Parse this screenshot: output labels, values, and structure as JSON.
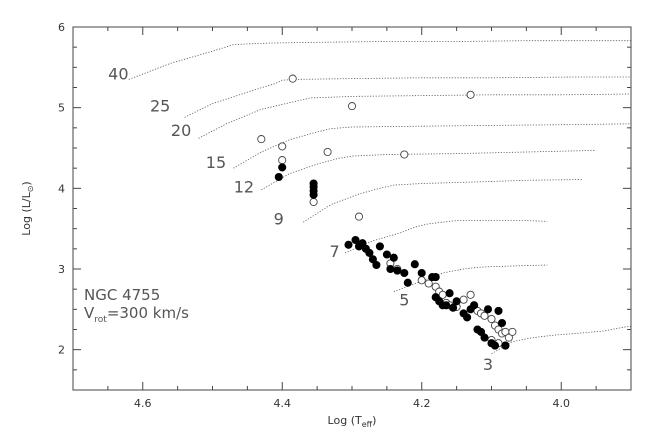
{
  "chart_data": {
    "type": "scatter",
    "xlabel": "Log (T",
    "xlabel_sub": "eff",
    "xlabel_close": ")",
    "ylabel": "Log (L/L",
    "ylabel_sub": "⊙",
    "ylabel_close": ")",
    "xlim": [
      4.7,
      3.9
    ],
    "ylim": [
      1.5,
      6.0
    ],
    "x_ticks": [
      4.6,
      4.4,
      4.2,
      4.0
    ],
    "x_tick_labels": [
      "4.6",
      "4.4",
      "4.2",
      "4.0"
    ],
    "y_ticks": [
      2,
      3,
      4,
      5,
      6
    ],
    "y_tick_labels": [
      "2",
      "3",
      "4",
      "5",
      "6"
    ],
    "annotation_line1": "NGC 4755",
    "annotation_v": "V",
    "annotation_sub": "rot",
    "annotation_rest": "=300 km/s",
    "tracks": [
      {
        "mass_label": "40",
        "label_x": 4.635,
        "label_y": 5.35,
        "points": [
          [
            4.62,
            5.35
          ],
          [
            4.56,
            5.55
          ],
          [
            4.5,
            5.7
          ],
          [
            4.47,
            5.78
          ],
          [
            4.45,
            5.79
          ],
          [
            4.42,
            5.8
          ],
          [
            4.35,
            5.81
          ],
          [
            4.25,
            5.82
          ],
          [
            4.15,
            5.82
          ],
          [
            4.05,
            5.83
          ],
          [
            3.9,
            5.83
          ]
        ]
      },
      {
        "mass_label": "25",
        "label_x": 4.575,
        "label_y": 4.95,
        "points": [
          [
            4.54,
            4.88
          ],
          [
            4.5,
            5.05
          ],
          [
            4.44,
            5.22
          ],
          [
            4.41,
            5.3
          ],
          [
            4.4,
            5.34
          ],
          [
            4.38,
            5.35
          ],
          [
            4.3,
            5.36
          ],
          [
            4.2,
            5.37
          ],
          [
            4.1,
            5.37
          ],
          [
            3.98,
            5.38
          ],
          [
            3.9,
            5.38
          ]
        ]
      },
      {
        "mass_label": "20",
        "label_x": 4.545,
        "label_y": 4.65,
        "points": [
          [
            4.52,
            4.62
          ],
          [
            4.48,
            4.8
          ],
          [
            4.43,
            4.98
          ],
          [
            4.38,
            5.08
          ],
          [
            4.36,
            5.12
          ],
          [
            4.3,
            5.14
          ],
          [
            4.2,
            5.15
          ],
          [
            4.1,
            5.16
          ],
          [
            4.0,
            5.16
          ],
          [
            3.9,
            5.17
          ]
        ]
      },
      {
        "mass_label": "15",
        "label_x": 4.495,
        "label_y": 4.25,
        "points": [
          [
            4.47,
            4.25
          ],
          [
            4.43,
            4.45
          ],
          [
            4.39,
            4.6
          ],
          [
            4.35,
            4.7
          ],
          [
            4.33,
            4.74
          ],
          [
            4.3,
            4.76
          ],
          [
            4.2,
            4.77
          ],
          [
            4.1,
            4.78
          ],
          [
            3.98,
            4.79
          ],
          [
            3.9,
            4.8
          ]
        ]
      },
      {
        "mass_label": "12",
        "label_x": 4.455,
        "label_y": 3.95,
        "points": [
          [
            4.43,
            3.98
          ],
          [
            4.39,
            4.18
          ],
          [
            4.35,
            4.3
          ],
          [
            4.32,
            4.37
          ],
          [
            4.3,
            4.4
          ],
          [
            4.25,
            4.42
          ],
          [
            4.15,
            4.43
          ],
          [
            4.05,
            4.45
          ],
          [
            3.95,
            4.47
          ]
        ]
      },
      {
        "mass_label": "9",
        "label_x": 4.405,
        "label_y": 3.55,
        "points": [
          [
            4.37,
            3.58
          ],
          [
            4.33,
            3.8
          ],
          [
            4.29,
            3.93
          ],
          [
            4.26,
            4.0
          ],
          [
            4.24,
            4.04
          ],
          [
            4.2,
            4.06
          ],
          [
            4.12,
            4.08
          ],
          [
            4.05,
            4.1
          ],
          [
            3.97,
            4.11
          ]
        ]
      },
      {
        "mass_label": "7",
        "label_x": 4.325,
        "label_y": 3.15,
        "points": [
          [
            4.31,
            3.2
          ],
          [
            4.27,
            3.35
          ],
          [
            4.23,
            3.45
          ],
          [
            4.21,
            3.52
          ],
          [
            4.19,
            3.56
          ],
          [
            4.15,
            3.6
          ],
          [
            4.1,
            3.6
          ],
          [
            4.05,
            3.6
          ],
          [
            4.02,
            3.59
          ]
        ]
      },
      {
        "mass_label": "5",
        "label_x": 4.225,
        "label_y": 2.55,
        "points": [
          [
            4.24,
            2.72
          ],
          [
            4.2,
            2.85
          ],
          [
            4.17,
            2.95
          ],
          [
            4.14,
            3.0
          ],
          [
            4.12,
            3.02
          ],
          [
            4.1,
            3.03
          ],
          [
            4.06,
            3.04
          ],
          [
            4.02,
            3.05
          ]
        ]
      },
      {
        "mass_label": "3",
        "label_x": 4.105,
        "label_y": 1.75,
        "points": [
          [
            4.1,
            1.95
          ],
          [
            4.07,
            2.1
          ],
          [
            4.04,
            2.15
          ],
          [
            4.01,
            2.18
          ],
          [
            3.98,
            2.2
          ],
          [
            3.94,
            2.23
          ],
          [
            3.91,
            2.28
          ],
          [
            3.9,
            2.29
          ]
        ]
      }
    ],
    "series": [
      {
        "name": "",
        "marker": "open",
        "points": [
          [
            4.385,
            5.36
          ],
          [
            4.3,
            5.02
          ],
          [
            4.13,
            5.16
          ],
          [
            4.43,
            4.61
          ],
          [
            4.4,
            4.52
          ],
          [
            4.4,
            4.35
          ],
          [
            4.335,
            4.45
          ],
          [
            4.225,
            4.42
          ],
          [
            4.355,
            3.83
          ],
          [
            4.29,
            3.65
          ],
          [
            4.245,
            3.07
          ],
          [
            4.235,
            3.0
          ],
          [
            4.2,
            2.86
          ],
          [
            4.19,
            2.82
          ],
          [
            4.18,
            2.78
          ],
          [
            4.175,
            2.72
          ],
          [
            4.17,
            2.68
          ],
          [
            4.165,
            2.58
          ],
          [
            4.16,
            2.55
          ],
          [
            4.15,
            2.53
          ],
          [
            4.14,
            2.62
          ],
          [
            4.13,
            2.68
          ],
          [
            4.125,
            2.55
          ],
          [
            4.12,
            2.48
          ],
          [
            4.115,
            2.45
          ],
          [
            4.11,
            2.42
          ],
          [
            4.1,
            2.38
          ],
          [
            4.095,
            2.3
          ],
          [
            4.09,
            2.25
          ],
          [
            4.085,
            2.2
          ],
          [
            4.08,
            2.22
          ],
          [
            4.075,
            2.15
          ],
          [
            4.1,
            2.12
          ],
          [
            4.09,
            2.08
          ],
          [
            4.08,
            2.05
          ],
          [
            4.07,
            2.22
          ]
        ]
      },
      {
        "name": "",
        "marker": "filled",
        "points": [
          [
            4.4,
            4.26
          ],
          [
            4.405,
            4.14
          ],
          [
            4.355,
            4.06
          ],
          [
            4.355,
            4.02
          ],
          [
            4.355,
            3.97
          ],
          [
            4.355,
            3.92
          ],
          [
            4.305,
            3.3
          ],
          [
            4.295,
            3.36
          ],
          [
            4.29,
            3.28
          ],
          [
            4.285,
            3.32
          ],
          [
            4.28,
            3.25
          ],
          [
            4.275,
            3.2
          ],
          [
            4.27,
            3.12
          ],
          [
            4.265,
            3.05
          ],
          [
            4.26,
            3.28
          ],
          [
            4.25,
            3.18
          ],
          [
            4.245,
            3.0
          ],
          [
            4.24,
            3.14
          ],
          [
            4.235,
            2.98
          ],
          [
            4.225,
            2.95
          ],
          [
            4.22,
            2.83
          ],
          [
            4.21,
            3.06
          ],
          [
            4.2,
            2.95
          ],
          [
            4.185,
            2.9
          ],
          [
            4.18,
            2.9
          ],
          [
            4.18,
            2.65
          ],
          [
            4.175,
            2.6
          ],
          [
            4.17,
            2.55
          ],
          [
            4.16,
            2.7
          ],
          [
            4.155,
            2.52
          ],
          [
            4.15,
            2.6
          ],
          [
            4.14,
            2.45
          ],
          [
            4.135,
            2.4
          ],
          [
            4.13,
            2.5
          ],
          [
            4.125,
            2.55
          ],
          [
            4.12,
            2.25
          ],
          [
            4.115,
            2.22
          ],
          [
            4.11,
            2.15
          ],
          [
            4.105,
            2.5
          ],
          [
            4.1,
            2.08
          ],
          [
            4.095,
            2.05
          ],
          [
            4.09,
            2.48
          ],
          [
            4.085,
            2.33
          ],
          [
            4.08,
            2.05
          ],
          [
            4.165,
            2.55
          ]
        ]
      }
    ]
  }
}
